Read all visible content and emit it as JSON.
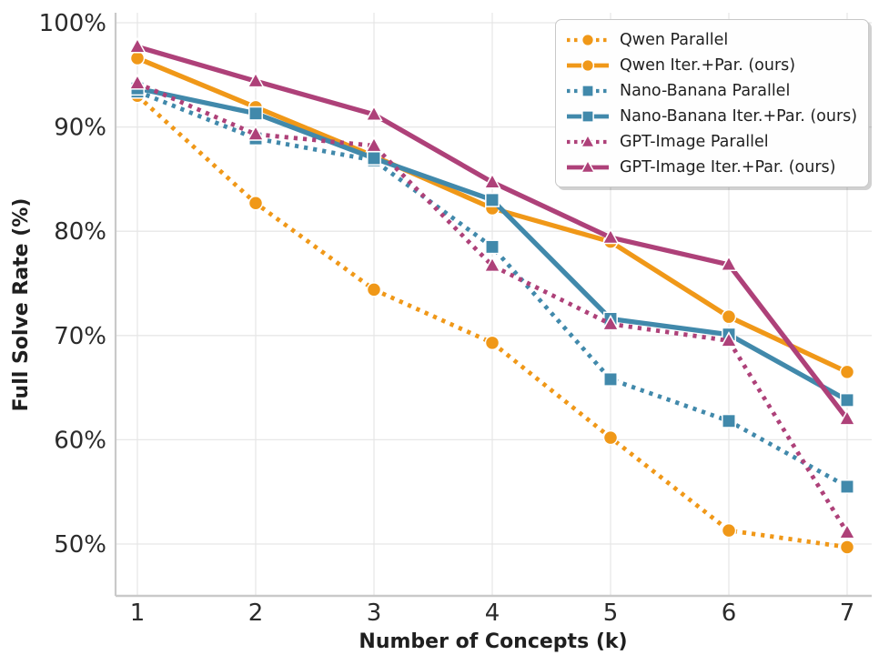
{
  "chart_data": {
    "type": "line",
    "x": [
      1,
      2,
      3,
      4,
      5,
      6,
      7
    ],
    "xlabel": "Number of Concepts (k)",
    "ylabel": "Full Solve Rate (%)",
    "xticks": [
      1,
      2,
      3,
      4,
      5,
      6,
      7
    ],
    "yticks": [
      50,
      60,
      70,
      80,
      90,
      100
    ],
    "ytick_suffix": "%",
    "ylim": [
      45,
      101
    ],
    "grid": true,
    "legend_position": "top-right",
    "colors": {
      "qwen_orange": "#F09818",
      "nano_banana_teal": "#4189AB",
      "gpt_image_magenta": "#AE4179",
      "grid_gray": "#e7e7e7",
      "spine_gray": "#c9c9c9"
    },
    "series": [
      {
        "name": "Qwen Parallel",
        "color": "#F09818",
        "style": "dotted",
        "marker": "circle",
        "values": [
          93.0,
          82.7,
          74.4,
          69.3,
          60.2,
          51.3,
          49.7
        ]
      },
      {
        "name": "Qwen Iter.+Par. (ours)",
        "color": "#F09818",
        "style": "solid",
        "marker": "circle",
        "values": [
          96.6,
          91.9,
          87.2,
          82.2,
          79.0,
          71.8,
          66.5
        ]
      },
      {
        "name": "Nano-Banana Parallel",
        "color": "#4189AB",
        "style": "dotted",
        "marker": "square",
        "values": [
          93.4,
          88.9,
          86.8,
          78.5,
          65.8,
          61.8,
          55.5
        ]
      },
      {
        "name": "Nano-Banana Iter.+Par. (ours)",
        "color": "#4189AB",
        "style": "solid",
        "marker": "square",
        "values": [
          93.7,
          91.3,
          87.0,
          83.0,
          71.6,
          70.1,
          63.8
        ]
      },
      {
        "name": "GPT-Image Parallel",
        "color": "#AE4179",
        "style": "dotted",
        "marker": "triangle",
        "values": [
          94.2,
          89.3,
          88.2,
          76.7,
          71.1,
          69.5,
          51.1
        ]
      },
      {
        "name": "GPT-Image Iter.+Par. (ours)",
        "color": "#AE4179",
        "style": "solid",
        "marker": "triangle",
        "values": [
          97.7,
          94.4,
          91.2,
          84.7,
          79.4,
          76.8,
          62.0
        ]
      }
    ]
  }
}
